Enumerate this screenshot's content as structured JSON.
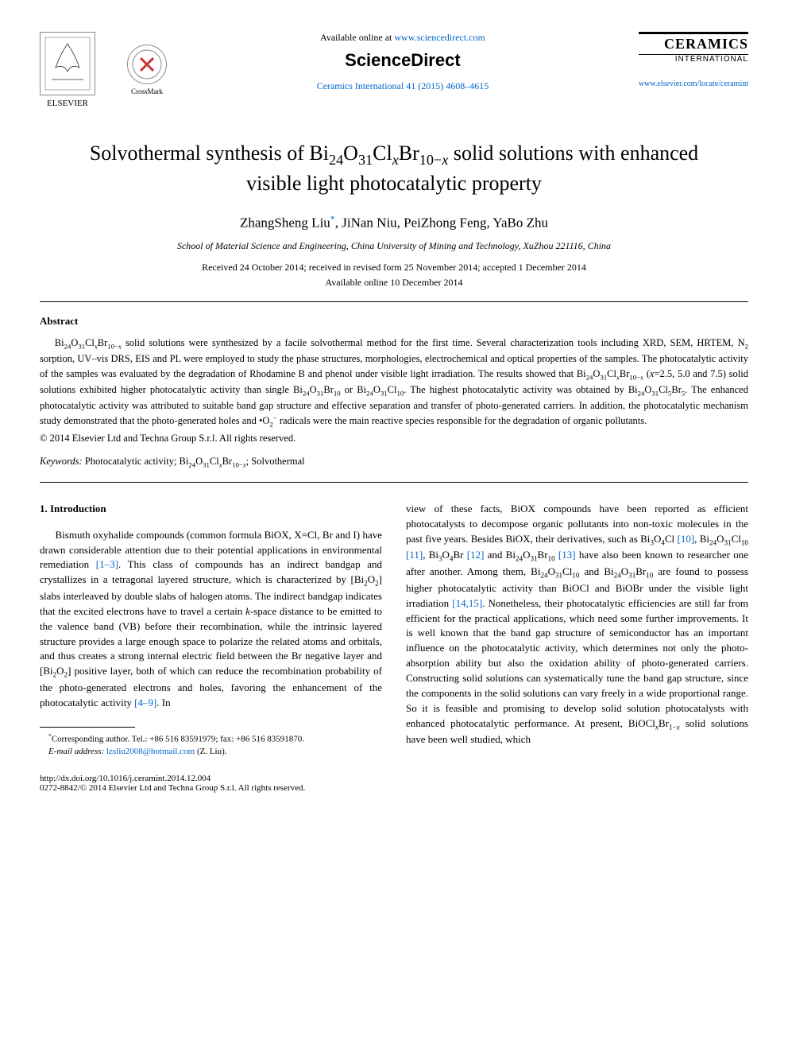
{
  "header": {
    "elsevier_label": "ELSEVIER",
    "crossmark_label": "CrossMark",
    "available_text": "Available online at ",
    "sd_url": "www.sciencedirect.com",
    "sciencedirect_logo_text": "ScienceDirect",
    "journal_citation": "Ceramics International 41 (2015) 4608–4615",
    "ceramics_title": "CERAMICS",
    "ceramics_subtitle": "INTERNATIONAL",
    "journal_url": "www.elsevier.com/locate/ceramint"
  },
  "article": {
    "title_html": "Solvothermal synthesis of Bi<sub>24</sub>O<sub>31</sub>Cl<sub><i>x</i></sub>Br<sub>10−<i>x</i></sub> solid solutions with enhanced visible light photocatalytic property",
    "authors_html": "ZhangSheng Liu<sup class=\"author-star\">*</sup>, JiNan Niu, PeiZhong Feng, YaBo Zhu",
    "affiliation": "School of Material Science and Engineering, China University of Mining and Technology, XuZhou 221116, China",
    "received": "Received 24 October 2014; received in revised form 25 November 2014; accepted 1 December 2014",
    "available": "Available online 10 December 2014"
  },
  "abstract": {
    "heading": "Abstract",
    "body_html": "Bi<sub>24</sub>O<sub>31</sub>Cl<sub><i>x</i></sub>Br<sub>10−<i>x</i></sub> solid solutions were synthesized by a facile solvothermal method for the first time. Several characterization tools including XRD, SEM, HRTEM, N<sub>2</sub> sorption, UV–vis DRS, EIS and PL were employed to study the phase structures, morphologies, electrochemical and optical properties of the samples. The photocatalytic activity of the samples was evaluated by the degradation of Rhodamine B and phenol under visible light irradiation. The results showed that Bi<sub>24</sub>O<sub>31</sub>Cl<sub><i>x</i></sub>Br<sub>10−<i>x</i></sub> (<i>x</i>=2.5, 5.0 and 7.5) solid solutions exhibited higher photocatalytic activity than single Bi<sub>24</sub>O<sub>31</sub>Br<sub>10</sub> or Bi<sub>24</sub>O<sub>31</sub>Cl<sub>10</sub>. The highest photocatalytic activity was obtained by Bi<sub>24</sub>O<sub>31</sub>Cl<sub>5</sub>Br<sub>5</sub>. The enhanced photocatalytic activity was attributed to suitable band gap structure and effective separation and transfer of photo-generated carriers. In addition, the photocatalytic mechanism study demonstrated that the photo-generated holes and •O<sub>2</sub><sup>−</sup> radicals were the main reactive species responsible for the degradation of organic pollutants.",
    "copyright": "© 2014 Elsevier Ltd and Techna Group S.r.l. All rights reserved."
  },
  "keywords": {
    "label": "Keywords:",
    "text_html": " Photocatalytic activity; Bi<sub>24</sub>O<sub>31</sub>Cl<sub><i>x</i></sub>Br<sub>10−<i>x</i></sub>; Solvothermal"
  },
  "body": {
    "section_heading": "1. Introduction",
    "col1_html": "Bismuth oxyhalide compounds (common formula BiOX, X=Cl, Br and I) have drawn considerable attention due to their potential applications in environmental remediation <span class=\"ref-link\">[1–3]</span>. This class of compounds has an indirect bandgap and crystallizes in a tetragonal layered structure, which is characterized by [Bi<sub>2</sub>O<sub>2</sub>] slabs interleaved by double slabs of halogen atoms. The indirect bandgap indicates that the excited electrons have to travel a certain <i>k</i>-space distance to be emitted to the valence band (VB) before their recombination, while the intrinsic layered structure provides a large enough space to polarize the related atoms and orbitals, and thus creates a strong internal electric field between the Br negative layer and [Bi<sub>2</sub>O<sub>2</sub>] positive layer, both of which can reduce the recombination probability of the photo-generated electrons and holes, favoring the enhancement of the photocatalytic activity <span class=\"ref-link\">[4–9]</span>. In",
    "col2_html": "view of these facts, BiOX compounds have been reported as efficient photocatalysts to decompose organic pollutants into non-toxic molecules in the past five years. Besides BiOX, their derivatives, such as Bi<sub>3</sub>O<sub>4</sub>Cl <span class=\"ref-link\">[10]</span>, Bi<sub>24</sub>O<sub>31</sub>Cl<sub>10</sub> <span class=\"ref-link\">[11]</span>, Bi<sub>3</sub>O<sub>4</sub>Br <span class=\"ref-link\">[12]</span> and Bi<sub>24</sub>O<sub>31</sub>Br<sub>10</sub> <span class=\"ref-link\">[13]</span> have also been known to researcher one after another. Among them, Bi<sub>24</sub>O<sub>31</sub>Cl<sub>10</sub> and Bi<sub>24</sub>O<sub>31</sub>Br<sub>10</sub> are found to possess higher photocatalytic activity than BiOCl and BiOBr under the visible light irradiation <span class=\"ref-link\">[14,15]</span>. Nonetheless, their photocatalytic efficiencies are still far from efficient for the practical applications, which need some further improvements. It is well known that the band gap structure of semiconductor has an important influence on the photocatalytic activity, which determines not only the photo-absorption ability but also the oxidation ability of photo-generated carriers. Constructing solid solutions can systematically tune the band gap structure, since the components in the solid solutions can vary freely in a wide proportional range. So it is feasible and promising to develop solid solution photocatalysts with enhanced photocatalytic performance. At present, BiOCl<sub><i>x</i></sub>Br<sub>1−<i>x</i></sub> solid solutions have been well studied, which"
  },
  "footnote": {
    "corresponding_html": "<sup>*</sup>Corresponding author. Tel.: +86 516 83591979; fax: +86 516 83591870.",
    "email_label": "E-mail address: ",
    "email": "lzsliu2008@hotmail.com",
    "email_suffix": " (Z. Liu)."
  },
  "doi": {
    "url": "http://dx.doi.org/10.1016/j.ceramint.2014.12.004",
    "issn_line": "0272-8842/© 2014 Elsevier Ltd and Techna Group S.r.l. All rights reserved."
  },
  "colors": {
    "link": "#0066cc",
    "text": "#000000",
    "bg": "#ffffff"
  }
}
